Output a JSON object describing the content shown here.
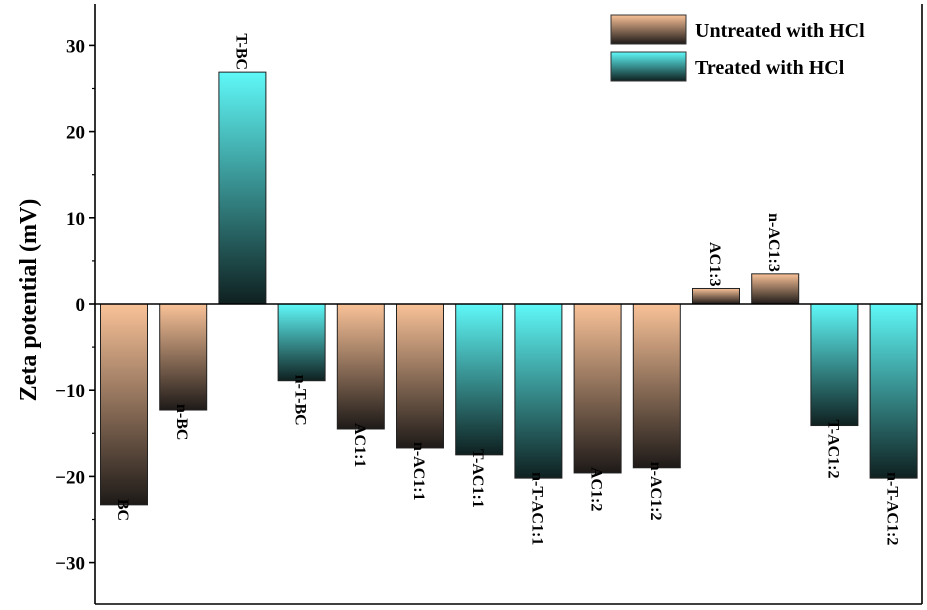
{
  "chart_data": {
    "type": "bar",
    "ylabel": "Zeta potential (mV)",
    "xlabel": "",
    "ylim": [
      -35,
      35
    ],
    "yticks": [
      -30,
      -20,
      -10,
      0,
      10,
      20,
      30
    ],
    "ytick_labels": [
      "−30",
      "−20",
      "−10",
      "0",
      "10",
      "20",
      "30"
    ],
    "grid": false,
    "legend_position": "top-right",
    "series": [
      {
        "name": "Untreated with HCl",
        "color_top": "#F9C298",
        "color_bottom": "#1E1A18"
      },
      {
        "name": "Treated with HCl",
        "color_top": "#5FF8F8",
        "color_bottom": "#0F2020"
      }
    ],
    "categories": [
      "BC",
      "n-BC",
      "T-BC",
      "n-T-BC",
      "AC1:1",
      "n-AC1:1",
      "T-AC1:1",
      "n-T-AC1:1",
      "AC1:2",
      "n-AC1:2",
      "AC1:3",
      "n-AC1:3",
      "T-AC1:2",
      "n-T-AC1:2"
    ],
    "values": [
      -23.3,
      -12.3,
      26.9,
      -8.9,
      -14.5,
      -16.7,
      -17.5,
      -20.2,
      -19.6,
      -19.0,
      1.8,
      3.5,
      -14.1,
      -20.2
    ],
    "series_index": [
      0,
      0,
      1,
      1,
      0,
      0,
      1,
      1,
      0,
      0,
      0,
      0,
      1,
      1
    ]
  }
}
